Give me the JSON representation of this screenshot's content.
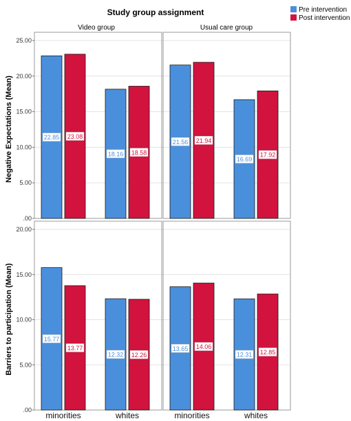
{
  "chart_data": {
    "type": "bar",
    "title": "Study group assignment",
    "panels": [
      "Video group",
      "Usual care group"
    ],
    "categories": [
      "minorities",
      "whites"
    ],
    "legend": {
      "placement": "top-right",
      "entries": [
        {
          "name": "Pre intervention",
          "color": "#4a8fdc"
        },
        {
          "name": "Post intervention",
          "color": "#d1133d"
        }
      ]
    },
    "rows": [
      {
        "ylabel": "Negative Expectations (Mean)",
        "ylim": [
          0,
          25
        ],
        "ticks": [
          ".00",
          "5.00",
          "10.00",
          "15.00",
          "20.00",
          "25.00"
        ],
        "panels": [
          {
            "panel": "Video group",
            "series": [
              {
                "name": "Pre intervention",
                "values": [
                  22.85,
                  18.16
                ],
                "labels": [
                  "22.85",
                  "18.16"
                ]
              },
              {
                "name": "Post intervention",
                "values": [
                  23.08,
                  18.58
                ],
                "labels": [
                  "23.08",
                  "18.58"
                ]
              }
            ]
          },
          {
            "panel": "Usual care group",
            "series": [
              {
                "name": "Pre intervention",
                "values": [
                  21.56,
                  16.69
                ],
                "labels": [
                  "21.56",
                  "16.69"
                ]
              },
              {
                "name": "Post intervention",
                "values": [
                  21.94,
                  17.92
                ],
                "labels": [
                  "21.94",
                  "17.92"
                ]
              }
            ]
          }
        ]
      },
      {
        "ylabel": "Barriers to participation (Mean)",
        "ylim": [
          0,
          20
        ],
        "ticks": [
          ".00",
          "5.00",
          "10.00",
          "15.00",
          "20.00"
        ],
        "panels": [
          {
            "panel": "Video group",
            "series": [
              {
                "name": "Pre intervention",
                "values": [
                  15.77,
                  12.32
                ],
                "labels": [
                  "15.77",
                  "12.32"
                ]
              },
              {
                "name": "Post intervention",
                "values": [
                  13.77,
                  12.26
                ],
                "labels": [
                  "13.77",
                  "12.26"
                ]
              }
            ]
          },
          {
            "panel": "Usual care group",
            "series": [
              {
                "name": "Pre intervention",
                "values": [
                  13.65,
                  12.31
                ],
                "labels": [
                  "13.65",
                  "12.31"
                ]
              },
              {
                "name": "Post intervention",
                "values": [
                  14.06,
                  12.85
                ],
                "labels": [
                  "14.06",
                  "12.85"
                ]
              }
            ]
          }
        ]
      }
    ],
    "grid": true
  }
}
